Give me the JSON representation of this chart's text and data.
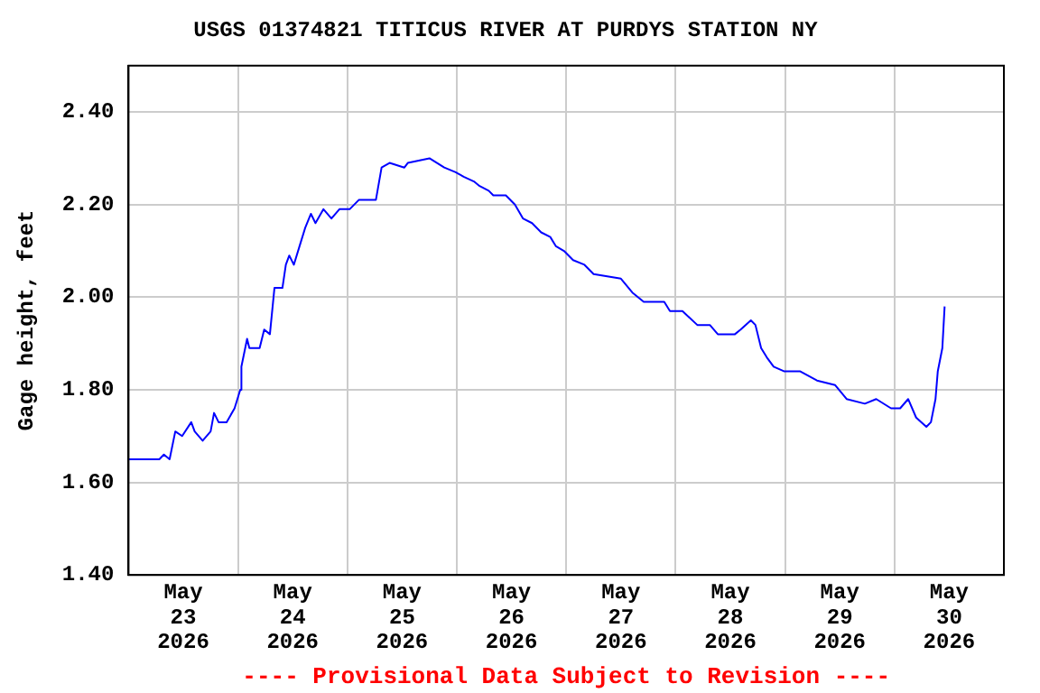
{
  "chart_data": {
    "type": "line",
    "title": "USGS 01374821 TITICUS RIVER AT PURDYS STATION NY",
    "ylabel": "Gage height, feet",
    "annotations": [
      "---- Provisional Data Subject to Revision ----"
    ],
    "x": [
      "2026-05-23T00:00",
      "2026-05-23T06:45",
      "2026-05-23T07:45",
      "2026-05-23T09:00",
      "2026-05-23T10:15",
      "2026-05-23T11:45",
      "2026-05-23T13:45",
      "2026-05-23T14:30",
      "2026-05-23T16:15",
      "2026-05-23T18:00",
      "2026-05-23T18:45",
      "2026-05-23T19:45",
      "2026-05-23T21:30",
      "2026-05-23T23:15",
      "2026-05-24T00:30",
      "2026-05-24T00:45",
      "2026-05-24T02:00",
      "2026-05-24T02:30",
      "2026-05-24T04:45",
      "2026-05-24T05:45",
      "2026-05-24T07:00",
      "2026-05-24T08:00",
      "2026-05-24T09:45",
      "2026-05-24T10:30",
      "2026-05-24T11:15",
      "2026-05-24T12:15",
      "2026-05-24T13:30",
      "2026-05-24T14:45",
      "2026-05-24T16:00",
      "2026-05-24T17:00",
      "2026-05-24T18:45",
      "2026-05-24T20:30",
      "2026-05-24T22:15",
      "2026-05-25T00:30",
      "2026-05-25T02:30",
      "2026-05-25T06:15",
      "2026-05-25T07:30",
      "2026-05-25T09:15",
      "2026-05-25T12:30",
      "2026-05-25T13:15",
      "2026-05-25T18:00",
      "2026-05-25T21:15",
      "2026-05-25T23:45",
      "2026-05-26T01:30",
      "2026-05-26T03:45",
      "2026-05-26T05:00",
      "2026-05-26T07:00",
      "2026-05-26T08:00",
      "2026-05-26T10:45",
      "2026-05-26T12:45",
      "2026-05-26T14:30",
      "2026-05-26T16:30",
      "2026-05-26T18:30",
      "2026-05-26T20:30",
      "2026-05-26T21:45",
      "2026-05-26T23:30",
      "2026-05-27T01:30",
      "2026-05-27T04:00",
      "2026-05-27T06:00",
      "2026-05-27T12:00",
      "2026-05-27T14:30",
      "2026-05-27T17:00",
      "2026-05-27T18:15",
      "2026-05-27T21:30",
      "2026-05-27T22:45",
      "2026-05-28T01:30",
      "2026-05-28T04:45",
      "2026-05-28T07:30",
      "2026-05-28T09:15",
      "2026-05-28T13:00",
      "2026-05-28T14:15",
      "2026-05-28T16:30",
      "2026-05-28T17:30",
      "2026-05-28T18:45",
      "2026-05-28T20:00",
      "2026-05-28T21:30",
      "2026-05-28T23:45",
      "2026-05-29T03:15",
      "2026-05-29T07:00",
      "2026-05-29T11:00",
      "2026-05-29T13:30",
      "2026-05-29T17:30",
      "2026-05-29T20:00",
      "2026-05-29T23:15",
      "2026-05-30T01:15",
      "2026-05-30T03:00",
      "2026-05-30T04:45",
      "2026-05-30T07:00",
      "2026-05-30T08:00",
      "2026-05-30T09:00",
      "2026-05-30T09:30",
      "2026-05-30T10:30",
      "2026-05-30T11:00"
    ],
    "series": [
      {
        "color": "#0000ff",
        "values": [
          1.65,
          1.65,
          1.66,
          1.65,
          1.71,
          1.7,
          1.73,
          1.71,
          1.69,
          1.71,
          1.75,
          1.73,
          1.73,
          1.76,
          1.8,
          1.85,
          1.91,
          1.89,
          1.89,
          1.93,
          1.92,
          2.02,
          2.02,
          2.07,
          2.09,
          2.07,
          2.11,
          2.15,
          2.18,
          2.16,
          2.19,
          2.17,
          2.19,
          2.19,
          2.21,
          2.21,
          2.28,
          2.29,
          2.28,
          2.29,
          2.3,
          2.28,
          2.27,
          2.26,
          2.25,
          2.24,
          2.23,
          2.22,
          2.22,
          2.2,
          2.17,
          2.16,
          2.14,
          2.13,
          2.11,
          2.1,
          2.08,
          2.07,
          2.05,
          2.04,
          2.01,
          1.99,
          1.99,
          1.99,
          1.97,
          1.97,
          1.94,
          1.94,
          1.92,
          1.92,
          1.93,
          1.95,
          1.94,
          1.89,
          1.87,
          1.85,
          1.84,
          1.84,
          1.82,
          1.81,
          1.78,
          1.77,
          1.78,
          1.76,
          1.76,
          1.78,
          1.74,
          1.72,
          1.73,
          1.78,
          1.84,
          1.89,
          1.98
        ]
      }
    ],
    "xlim": [
      "2026-05-23T00:00",
      "2026-05-31T00:00"
    ],
    "xticks": [
      {
        "value": "2026-05-23T12:00",
        "label": "May 23 2026"
      },
      {
        "value": "2026-05-24T00:00",
        "label": null
      },
      {
        "value": "2026-05-24T12:00",
        "label": "May 24 2026"
      },
      {
        "value": "2026-05-25T00:00",
        "label": null
      },
      {
        "value": "2026-05-25T12:00",
        "label": "May 25 2026"
      },
      {
        "value": "2026-05-26T00:00",
        "label": null
      },
      {
        "value": "2026-05-26T12:00",
        "label": "May 26 2026"
      },
      {
        "value": "2026-05-27T00:00",
        "label": null
      },
      {
        "value": "2026-05-27T12:00",
        "label": "May 27 2026"
      },
      {
        "value": "2026-05-28T00:00",
        "label": null
      },
      {
        "value": "2026-05-28T12:00",
        "label": "May 28 2026"
      },
      {
        "value": "2026-05-29T00:00",
        "label": null
      },
      {
        "value": "2026-05-29T12:00",
        "label": "May 29 2026"
      },
      {
        "value": "2026-05-30T00:00",
        "label": null
      },
      {
        "value": "2026-05-30T12:00",
        "label": "May 30 2026"
      }
    ],
    "ylim": [
      1.4,
      2.5
    ],
    "yticks": [
      {
        "value": 1.4,
        "label": "1.40"
      },
      {
        "value": 1.6,
        "label": "1.60"
      },
      {
        "value": 1.8,
        "label": "1.80"
      },
      {
        "value": 2.0,
        "label": "2.00"
      },
      {
        "value": 2.2,
        "label": "2.20"
      },
      {
        "value": 2.4,
        "label": "2.40"
      }
    ],
    "grid": true,
    "legend": false,
    "marker": "none",
    "line_style": "solid"
  }
}
